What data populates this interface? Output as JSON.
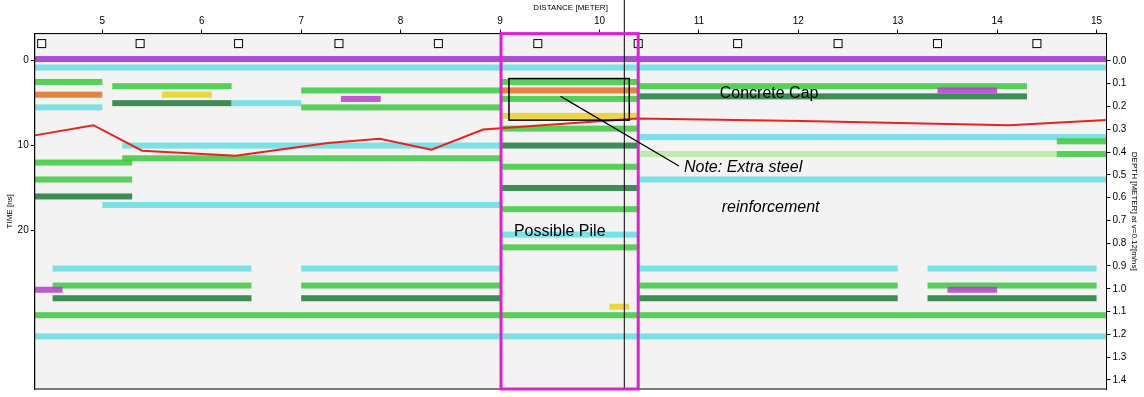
{
  "chart_data": {
    "type": "radargram",
    "x_label": "DISTANCE [METER]",
    "y_label": "TIME [ns]",
    "y2_label": "DEPTH [METER] at v=0.12[m/ns]",
    "xlim": [
      4.32,
      15.1
    ],
    "xticks": [
      5,
      6,
      7,
      8,
      9,
      10,
      11,
      12,
      13,
      14,
      15
    ],
    "ylim": [
      -3.2,
      38.7
    ],
    "yticks": [
      0,
      10,
      20
    ],
    "y2lim": [
      -0.12,
      1.44
    ],
    "y2ticks": [
      {
        "value": 0,
        "label": "0.0"
      },
      0.1,
      0.2,
      0.3,
      0.4,
      0.5,
      0.6,
      0.7,
      0.8,
      0.9,
      {
        "value": 1,
        "label": "1.0"
      },
      1.1,
      1.2,
      1.3,
      1.4
    ],
    "grid": false,
    "marks": [
      4.39,
      5.38,
      6.37,
      7.38,
      8.38,
      9.38,
      10.39,
      11.39,
      12.4,
      13.4,
      14.4
    ],
    "cursor": 10.25,
    "series": [
      {
        "type": "line",
        "color": "#e8231e",
        "x": [
          4.32,
          4.91,
          5.4,
          6.34,
          7.27,
          7.79,
          8.31,
          8.83,
          10.38,
          12.04,
          14.12,
          15.1
        ],
        "values": [
          8.8,
          7.6,
          10.6,
          11.2,
          9.7,
          9.2,
          10.5,
          8.1,
          6.8,
          7.1,
          7.6,
          7.0
        ]
      }
    ],
    "reflectors": [
      {
        "x": [
          4.32,
          15.1
        ],
        "t": -0.2,
        "color": "#9b30c8"
      },
      {
        "x": [
          4.32,
          15.1
        ],
        "t": 0.8,
        "color": "#66dde0"
      },
      {
        "x": [
          4.32,
          5.0
        ],
        "t": 2.5,
        "color": "#3cc83c"
      },
      {
        "x": [
          4.32,
          5.0
        ],
        "t": 4.0,
        "color": "#e07020"
      },
      {
        "x": [
          4.32,
          5.0
        ],
        "t": 5.5,
        "color": "#66dde0"
      },
      {
        "x": [
          5.1,
          6.3
        ],
        "t": 3.0,
        "color": "#3cc83c"
      },
      {
        "x": [
          5.6,
          6.1
        ],
        "t": 4.0,
        "color": "#e8d020"
      },
      {
        "x": [
          5.1,
          6.3
        ],
        "t": 5.0,
        "color": "#1d7a3a"
      },
      {
        "x": [
          6.3,
          7.0
        ],
        "t": 5.0,
        "color": "#66dde0"
      },
      {
        "x": [
          7.0,
          9.0
        ],
        "t": 3.5,
        "color": "#3cc83c"
      },
      {
        "x": [
          7.4,
          7.8
        ],
        "t": 4.5,
        "color": "#b040c8"
      },
      {
        "x": [
          7.0,
          9.0
        ],
        "t": 5.5,
        "color": "#3cc83c"
      },
      {
        "x": [
          9.0,
          10.4
        ],
        "t": 2.5,
        "color": "#3cc83c"
      },
      {
        "x": [
          9.0,
          10.4
        ],
        "t": 3.5,
        "color": "#e07020"
      },
      {
        "x": [
          9.0,
          10.4
        ],
        "t": 4.5,
        "color": "#3cc83c"
      },
      {
        "x": [
          10.4,
          14.3
        ],
        "t": 3.0,
        "color": "#3cc83c"
      },
      {
        "x": [
          10.4,
          14.3
        ],
        "t": 4.2,
        "color": "#1d7a3a"
      },
      {
        "x": [
          13.4,
          14.0
        ],
        "t": 3.5,
        "color": "#b040c8"
      },
      {
        "x": [
          9.0,
          10.4
        ],
        "t": 6.5,
        "color": "#e8d020"
      },
      {
        "x": [
          9.0,
          10.4
        ],
        "t": 8.0,
        "color": "#3cc83c"
      },
      {
        "x": [
          9.0,
          10.4
        ],
        "t": 10.0,
        "color": "#1d7a3a"
      },
      {
        "x": [
          9.0,
          10.4
        ],
        "t": 12.5,
        "color": "#3cc83c"
      },
      {
        "x": [
          9.0,
          10.4
        ],
        "t": 15.0,
        "color": "#1d7a3a"
      },
      {
        "x": [
          9.0,
          10.4
        ],
        "t": 17.5,
        "color": "#3cc83c"
      },
      {
        "x": [
          9.0,
          10.4
        ],
        "t": 20.5,
        "color": "#66dde0"
      },
      {
        "x": [
          9.0,
          10.4
        ],
        "t": 22.0,
        "color": "#3cc83c"
      },
      {
        "x": [
          4.32,
          5.3
        ],
        "t": 12.0,
        "color": "#3cc83c"
      },
      {
        "x": [
          4.32,
          5.3
        ],
        "t": 14.0,
        "color": "#3cc83c"
      },
      {
        "x": [
          4.32,
          5.3
        ],
        "t": 16.0,
        "color": "#1d7a3a"
      },
      {
        "x": [
          5.2,
          9.0
        ],
        "t": 10.0,
        "color": "#66dde0"
      },
      {
        "x": [
          5.2,
          9.0
        ],
        "t": 11.5,
        "color": "#3cc83c"
      },
      {
        "x": [
          5.0,
          9.0
        ],
        "t": 17.0,
        "color": "#66dde0"
      },
      {
        "x": [
          10.4,
          15.1
        ],
        "t": 9.0,
        "color": "#66dde0"
      },
      {
        "x": [
          10.4,
          14.6
        ],
        "t": 11.0,
        "color": "#b8e8a0"
      },
      {
        "x": [
          10.4,
          15.1
        ],
        "t": 14.0,
        "color": "#66dde0"
      },
      {
        "x": [
          14.6,
          15.1
        ],
        "t": 9.5,
        "color": "#3cc83c"
      },
      {
        "x": [
          14.6,
          15.1
        ],
        "t": 11.0,
        "color": "#3cc83c"
      },
      {
        "x": [
          4.5,
          6.5
        ],
        "t": 24.5,
        "color": "#66dde0"
      },
      {
        "x": [
          7.0,
          9.0
        ],
        "t": 24.5,
        "color": "#66dde0"
      },
      {
        "x": [
          10.4,
          13.0
        ],
        "t": 24.5,
        "color": "#66dde0"
      },
      {
        "x": [
          13.3,
          15.0
        ],
        "t": 24.5,
        "color": "#66dde0"
      },
      {
        "x": [
          4.5,
          6.5
        ],
        "t": 26.5,
        "color": "#3cc83c"
      },
      {
        "x": [
          7.0,
          9.0
        ],
        "t": 26.5,
        "color": "#3cc83c"
      },
      {
        "x": [
          10.4,
          13.0
        ],
        "t": 26.5,
        "color": "#3cc83c"
      },
      {
        "x": [
          13.3,
          15.0
        ],
        "t": 26.5,
        "color": "#3cc83c"
      },
      {
        "x": [
          4.32,
          4.6
        ],
        "t": 27.0,
        "color": "#b040c8"
      },
      {
        "x": [
          13.5,
          14.0
        ],
        "t": 27.0,
        "color": "#b040c8"
      },
      {
        "x": [
          4.5,
          6.5
        ],
        "t": 28.0,
        "color": "#1d7a3a"
      },
      {
        "x": [
          7.0,
          9.0
        ],
        "t": 28.0,
        "color": "#1d7a3a"
      },
      {
        "x": [
          10.4,
          13.0
        ],
        "t": 28.0,
        "color": "#1d7a3a"
      },
      {
        "x": [
          13.3,
          15.0
        ],
        "t": 28.0,
        "color": "#1d7a3a"
      },
      {
        "x": [
          10.1,
          10.3
        ],
        "t": 29.0,
        "color": "#e8d020"
      },
      {
        "x": [
          4.32,
          15.1
        ],
        "t": 30.0,
        "color": "#3cc83c"
      },
      {
        "x": [
          4.32,
          15.1
        ],
        "t": 32.5,
        "color": "#66dde0"
      }
    ],
    "boxes": [
      {
        "x": [
          9.01,
          10.39
        ],
        "t": [
          -3.2,
          38.7
        ],
        "color": "#e020d0"
      },
      {
        "x": [
          9.09,
          10.3
        ],
        "t": [
          2.1,
          7.0
        ],
        "color": "#000000"
      }
    ],
    "leader": {
      "from": [
        9.61,
        4.2
      ],
      "to": [
        10.8,
        12.4
      ]
    },
    "annotations": [
      {
        "text": "Concrete Cap",
        "x": 11.21,
        "t": 3.9,
        "style": "normal"
      },
      {
        "text": "Possible Pile",
        "x": 9.14,
        "t": 20.2,
        "style": "normal"
      },
      {
        "text": "Note: Extra steel",
        "x": 10.85,
        "t": 12.6,
        "style": "italic"
      },
      {
        "text": "reinforcement",
        "x": 11.23,
        "t": 17.3,
        "style": "italic"
      }
    ]
  }
}
